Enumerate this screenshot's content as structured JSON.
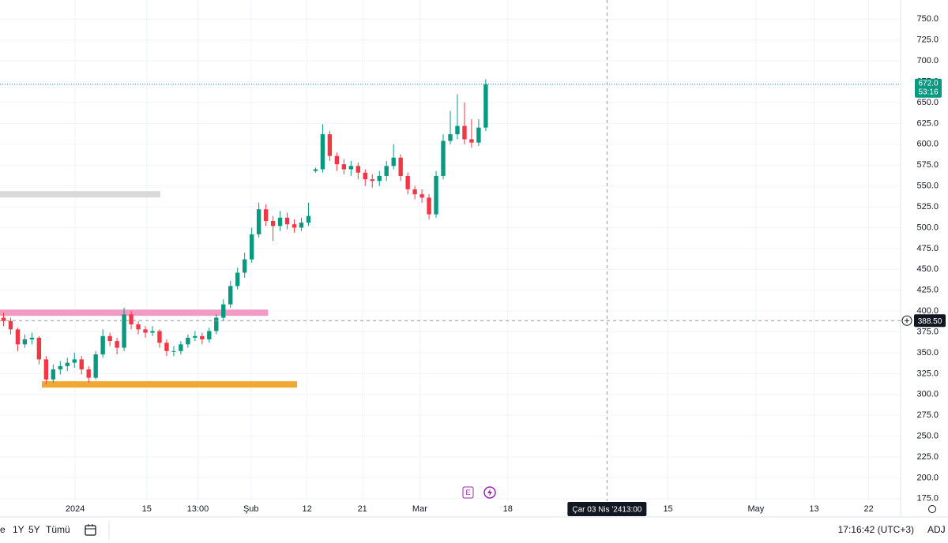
{
  "chart_data": {
    "type": "candlestick",
    "x": [
      0,
      1,
      2,
      3,
      4,
      5,
      6,
      7,
      8,
      9,
      10,
      11,
      12,
      13,
      14,
      15,
      16,
      17,
      18,
      19,
      20,
      21,
      22,
      23,
      24,
      25,
      26,
      27,
      28,
      29,
      30,
      31,
      32,
      33,
      34,
      35,
      36,
      37,
      38,
      39,
      40,
      41,
      42,
      43,
      44,
      45,
      46,
      47,
      48,
      49,
      50,
      51,
      52,
      53,
      54,
      55,
      56,
      57,
      58,
      59,
      60,
      61,
      62,
      63,
      64,
      65,
      66,
      67,
      68
    ],
    "open": [
      392,
      388,
      378,
      360,
      366,
      368,
      342,
      318,
      330,
      334,
      338,
      342,
      330,
      320,
      348,
      370,
      364,
      356,
      396,
      384,
      378,
      374,
      376,
      362,
      352,
      352,
      360,
      368,
      370,
      366,
      376,
      392,
      408,
      430,
      446,
      462,
      492,
      522,
      508,
      502,
      512,
      504,
      500,
      506,
      568,
      570,
      612,
      586,
      576,
      570,
      574,
      566,
      558,
      556,
      562,
      574,
      584,
      562,
      546,
      540,
      536,
      516,
      562,
      604,
      612,
      622,
      606,
      602,
      620
    ],
    "high": [
      398,
      392,
      380,
      372,
      374,
      370,
      346,
      336,
      340,
      344,
      350,
      346,
      334,
      352,
      378,
      374,
      368,
      404,
      400,
      388,
      382,
      382,
      378,
      366,
      358,
      364,
      372,
      376,
      374,
      380,
      396,
      414,
      436,
      452,
      470,
      500,
      530,
      528,
      514,
      520,
      518,
      510,
      512,
      530,
      572,
      624,
      616,
      590,
      582,
      580,
      578,
      570,
      564,
      568,
      580,
      600,
      588,
      566,
      550,
      546,
      540,
      568,
      612,
      640,
      660,
      650,
      630,
      630,
      678
    ],
    "low": [
      382,
      372,
      352,
      356,
      360,
      336,
      312,
      314,
      324,
      328,
      332,
      324,
      314,
      318,
      344,
      358,
      348,
      352,
      378,
      372,
      368,
      370,
      356,
      346,
      346,
      348,
      356,
      364,
      360,
      362,
      372,
      388,
      404,
      426,
      440,
      458,
      488,
      502,
      484,
      496,
      498,
      494,
      496,
      502,
      566,
      566,
      580,
      568,
      564,
      562,
      558,
      550,
      548,
      550,
      556,
      570,
      556,
      540,
      534,
      530,
      510,
      512,
      558,
      600,
      606,
      600,
      596,
      598,
      616
    ],
    "close": [
      388,
      378,
      360,
      366,
      368,
      342,
      318,
      330,
      334,
      338,
      342,
      330,
      320,
      348,
      370,
      364,
      356,
      396,
      384,
      378,
      374,
      376,
      362,
      352,
      352,
      360,
      368,
      370,
      366,
      376,
      392,
      408,
      430,
      446,
      462,
      492,
      522,
      508,
      502,
      512,
      504,
      500,
      506,
      514,
      570,
      612,
      586,
      576,
      570,
      574,
      566,
      558,
      556,
      562,
      574,
      584,
      562,
      546,
      540,
      536,
      516,
      562,
      604,
      612,
      622,
      606,
      602,
      620,
      672
    ],
    "up_color": "#089981",
    "down_color": "#f23645",
    "xlim": [
      -0.5,
      126.5
    ],
    "xticks": [
      {
        "value": 10.1,
        "label": "2024"
      },
      {
        "value": 20.2,
        "label": "15"
      },
      {
        "value": 27.4,
        "label": "13:00"
      },
      {
        "value": 34.9,
        "label": "Şub"
      },
      {
        "value": 42.8,
        "label": "12"
      },
      {
        "value": 50.6,
        "label": "21"
      },
      {
        "value": 58.7,
        "label": "Mar"
      },
      {
        "value": 71.1,
        "label": "18"
      },
      {
        "value": 93.7,
        "label": "15"
      },
      {
        "value": 106.1,
        "label": "May"
      },
      {
        "value": 114.3,
        "label": "13"
      },
      {
        "value": 122.0,
        "label": "22"
      }
    ],
    "ylim": [
      172,
      773
    ],
    "yticks": [
      {
        "value": 175,
        "label": "175.0"
      },
      {
        "value": 200,
        "label": "200.0"
      },
      {
        "value": 225,
        "label": "225.0"
      },
      {
        "value": 250,
        "label": "250.0"
      },
      {
        "value": 275,
        "label": "275.0"
      },
      {
        "value": 300,
        "label": "300.0"
      },
      {
        "value": 325,
        "label": "325.0"
      },
      {
        "value": 350,
        "label": "350.0"
      },
      {
        "value": 375,
        "label": "375.0"
      },
      {
        "value": 400,
        "label": "400.0"
      },
      {
        "value": 425,
        "label": "425.0"
      },
      {
        "value": 450,
        "label": "450.0"
      },
      {
        "value": 475,
        "label": "475.0"
      },
      {
        "value": 500,
        "label": "500.0"
      },
      {
        "value": 525,
        "label": "525.0"
      },
      {
        "value": 550,
        "label": "550.0"
      },
      {
        "value": 575,
        "label": "575.0"
      },
      {
        "value": 600,
        "label": "600.0"
      },
      {
        "value": 625,
        "label": "625.0"
      },
      {
        "value": 650,
        "label": "650.0"
      },
      {
        "value": 675,
        "label": "675.0"
      },
      {
        "value": 700,
        "label": "700.0"
      },
      {
        "value": 725,
        "label": "725.0"
      },
      {
        "value": 750,
        "label": "750.0"
      }
    ],
    "grid": true,
    "levels": [
      {
        "value": 540,
        "x": [
          -0.5,
          22.1
        ],
        "color": "#d9d9d9"
      },
      {
        "value": 398,
        "x": [
          -0.5,
          37.3
        ],
        "color": "#f09ac4"
      },
      {
        "value": 312,
        "x": [
          5.4,
          41.4
        ],
        "color": "#f0a830"
      }
    ],
    "last_price": {
      "value": 672,
      "label": "672.0",
      "countdown": "53:16",
      "color": "#089981"
    },
    "crosshair": {
      "x": 85.1,
      "y": {
        "value": 388.5,
        "label": "388.50"
      },
      "date_label": "Çar 03 Nis '24",
      "time_label": "13:00"
    },
    "event_icon": "E"
  },
  "toolbar": {
    "ranges": [
      "e",
      "1Y",
      "5Y",
      "Tümü"
    ],
    "clock": "17:16:42 (UTC+3)",
    "adj": "ADJ"
  }
}
